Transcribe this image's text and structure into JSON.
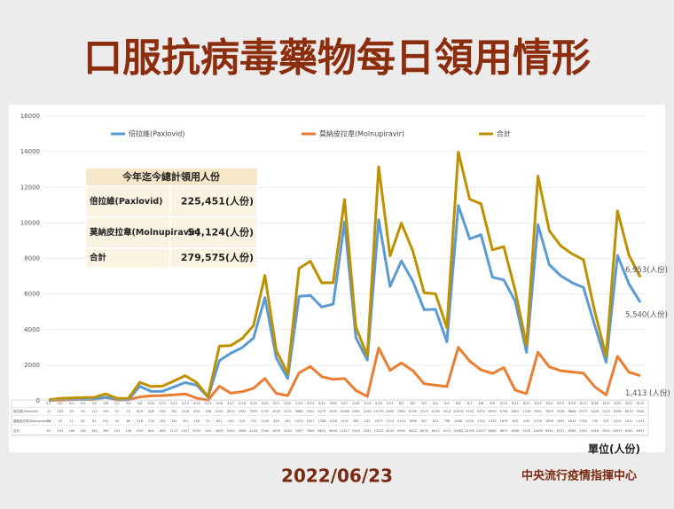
{
  "chart_data": {
    "type": "line",
    "title": "口服抗病毒藥物每日領用情形",
    "categories": [
      "5/1",
      "5/2",
      "5/3",
      "5/4",
      "5/5",
      "5/6",
      "5/7",
      "5/8",
      "5/9",
      "5/10",
      "5/11",
      "5/12",
      "5/13",
      "5/14",
      "5/15",
      "5/16",
      "5/17",
      "5/18",
      "5/19",
      "5/20",
      "5/21",
      "5/22",
      "5/23",
      "5/24",
      "5/25",
      "5/26",
      "5/27",
      "5/28",
      "5/29",
      "5/30",
      "5/31",
      "6/1",
      "6/2",
      "6/3",
      "6/4",
      "6/5",
      "6/6",
      "6/7",
      "6/8",
      "6/9",
      "6/10",
      "6/11",
      "6/12",
      "6/13",
      "6/14",
      "6/15",
      "6/16",
      "6/17",
      "6/18",
      "6/19",
      "6/20",
      "6/21",
      "6/22"
    ],
    "series": [
      {
        "name": "倍拉維(Paxlovid)",
        "color": "#5b9bd5",
        "values": [
          22,
          100,
          95,
          90,
          111,
          199,
          91,
          70,
          819,
          526,
          536,
          782,
          1026,
          876,
          198,
          2261,
          2674,
          2991,
          3533,
          5795,
          2420,
          1253,
          5866,
          5922,
          5273,
          5435,
          10066,
          3561,
          2290,
          10176,
          6430,
          7862,
          6726,
          5119,
          5138,
          3313,
          10976,
          9102,
          9335,
          6950,
          6794,
          5603,
          2728,
          9901,
          7653,
          7026,
          6646,
          6377,
          4226,
          2170,
          8169,
          6570,
          5540
        ]
      },
      {
        "name": "莫納皮拉韋(Molnupiravir)",
        "color": "#ed7d31",
        "values": [
          39,
          33,
          71,
          90,
          81,
          191,
          50,
          66,
          218,
          278,
          292,
          335,
          391,
          149,
          42,
          821,
          430,
          515,
          701,
          1249,
          419,
          287,
          1571,
          1927,
          1358,
          1209,
          1251,
          582,
          242,
          2977,
          1713,
          2129,
          1696,
          957,
          875,
          798,
          3006,
          2233,
          1742,
          1535,
          1876,
          603,
          405,
          2729,
          1908,
          1691,
          1619,
          1554,
          790,
          331,
          2502,
          1612,
          1413
        ]
      },
      {
        "name": "合計",
        "color": "#bf9000",
        "values": [
          61,
          133,
          166,
          180,
          192,
          390,
          141,
          136,
          1037,
          804,
          828,
          1117,
          1417,
          1025,
          240,
          3082,
          3104,
          3506,
          4234,
          7044,
          2839,
          1540,
          7437,
          7849,
          6631,
          6644,
          11317,
          4143,
          2532,
          13153,
          8143,
          9991,
          8422,
          6076,
          6013,
          4111,
          13982,
          11335,
          11077,
          8485,
          8670,
          6206,
          3133,
          12630,
          9561,
          8717,
          8265,
          7931,
          5016,
          2501,
          10671,
          8182,
          6953
        ]
      }
    ],
    "end_labels": [
      "6,953(人份)",
      "5,540(人份)",
      "1,413 (人份)"
    ],
    "ylim": [
      0,
      16000
    ],
    "yticks": [
      0,
      2000,
      4000,
      6000,
      8000,
      10000,
      12000,
      14000,
      16000
    ],
    "grid": true,
    "summary": {
      "title": "今年迄今總計領用人份",
      "rows": [
        [
          "倍拉維(Paxlovid)",
          "225,451(人份)"
        ],
        [
          "莫納皮拉韋(Molnupiravir)",
          "54,124(人份)"
        ],
        [
          "合計",
          "279,575(人份)"
        ]
      ]
    },
    "unit": "單位(人份)",
    "date": "2022/06/23",
    "source": "中央流行疫情指揮中心"
  }
}
